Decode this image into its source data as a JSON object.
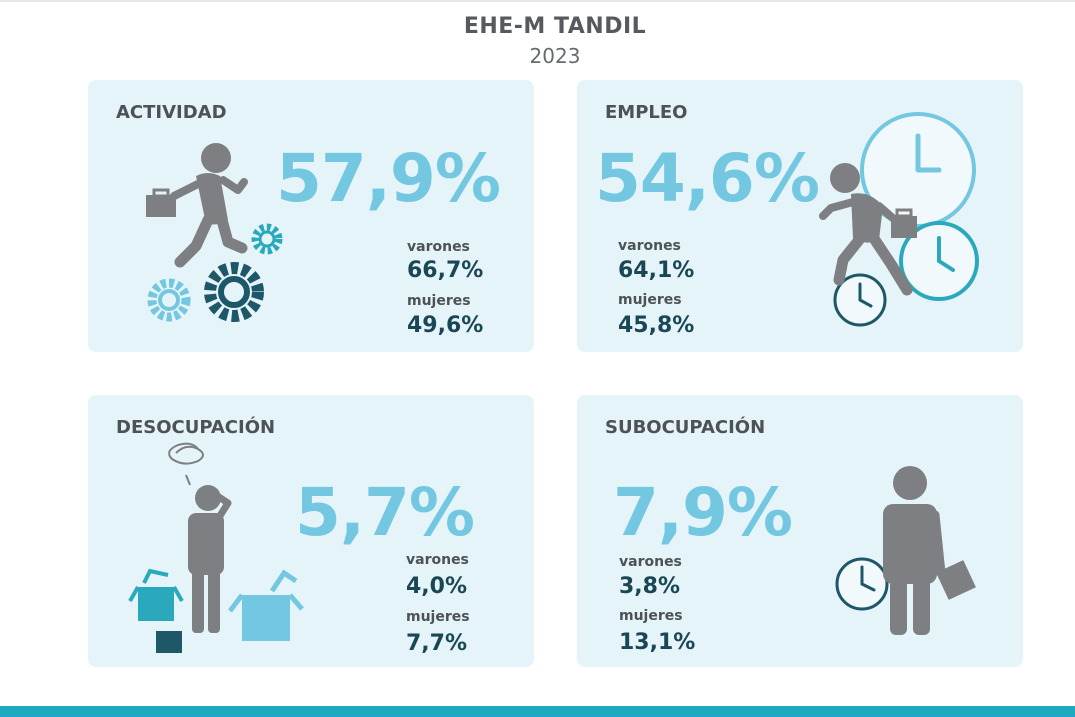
{
  "header": {
    "title": "EHE-M  TANDIL",
    "year": "2023"
  },
  "cards": [
    {
      "title": "ACTIVIDAD",
      "total": "57,9%",
      "varones_label": "varones",
      "varones_value": "66,7%",
      "mujeres_label": "mujeres",
      "mujeres_value": "49,6%",
      "icons": [
        "walking-businessman-icon",
        "gears-icon"
      ]
    },
    {
      "title": "EMPLEO",
      "total": "54,6%",
      "varones_label": "varones",
      "varones_value": "64,1%",
      "mujeres_label": "mujeres",
      "mujeres_value": "45,8%",
      "icons": [
        "running-businessman-icon",
        "clocks-icon"
      ]
    },
    {
      "title": "DESOCUPACIÓN",
      "total": "5,7%",
      "varones_label": "varones",
      "varones_value": "4,0%",
      "mujeres_label": "mujeres",
      "mujeres_value": "7,7%",
      "icons": [
        "worried-person-icon",
        "boxes-icon"
      ]
    },
    {
      "title": "SUBOCUPACIÓN",
      "total": "7,9%",
      "varones_label": "varones",
      "varones_value": "3,8%",
      "mujeres_label": "mujeres",
      "mujeres_value": "13,1%",
      "icons": [
        "standing-businessman-icon",
        "clock-icon"
      ]
    }
  ],
  "colors": {
    "card_background": "#e5f4f8",
    "big_percent": "#73c7e0",
    "sub_value": "#1a4756",
    "figure_gray": "#7d7f82",
    "accent_teal": "#2aa9bd",
    "dark_teal": "#1e5768",
    "bottom_bar": "#1fa9bf"
  }
}
